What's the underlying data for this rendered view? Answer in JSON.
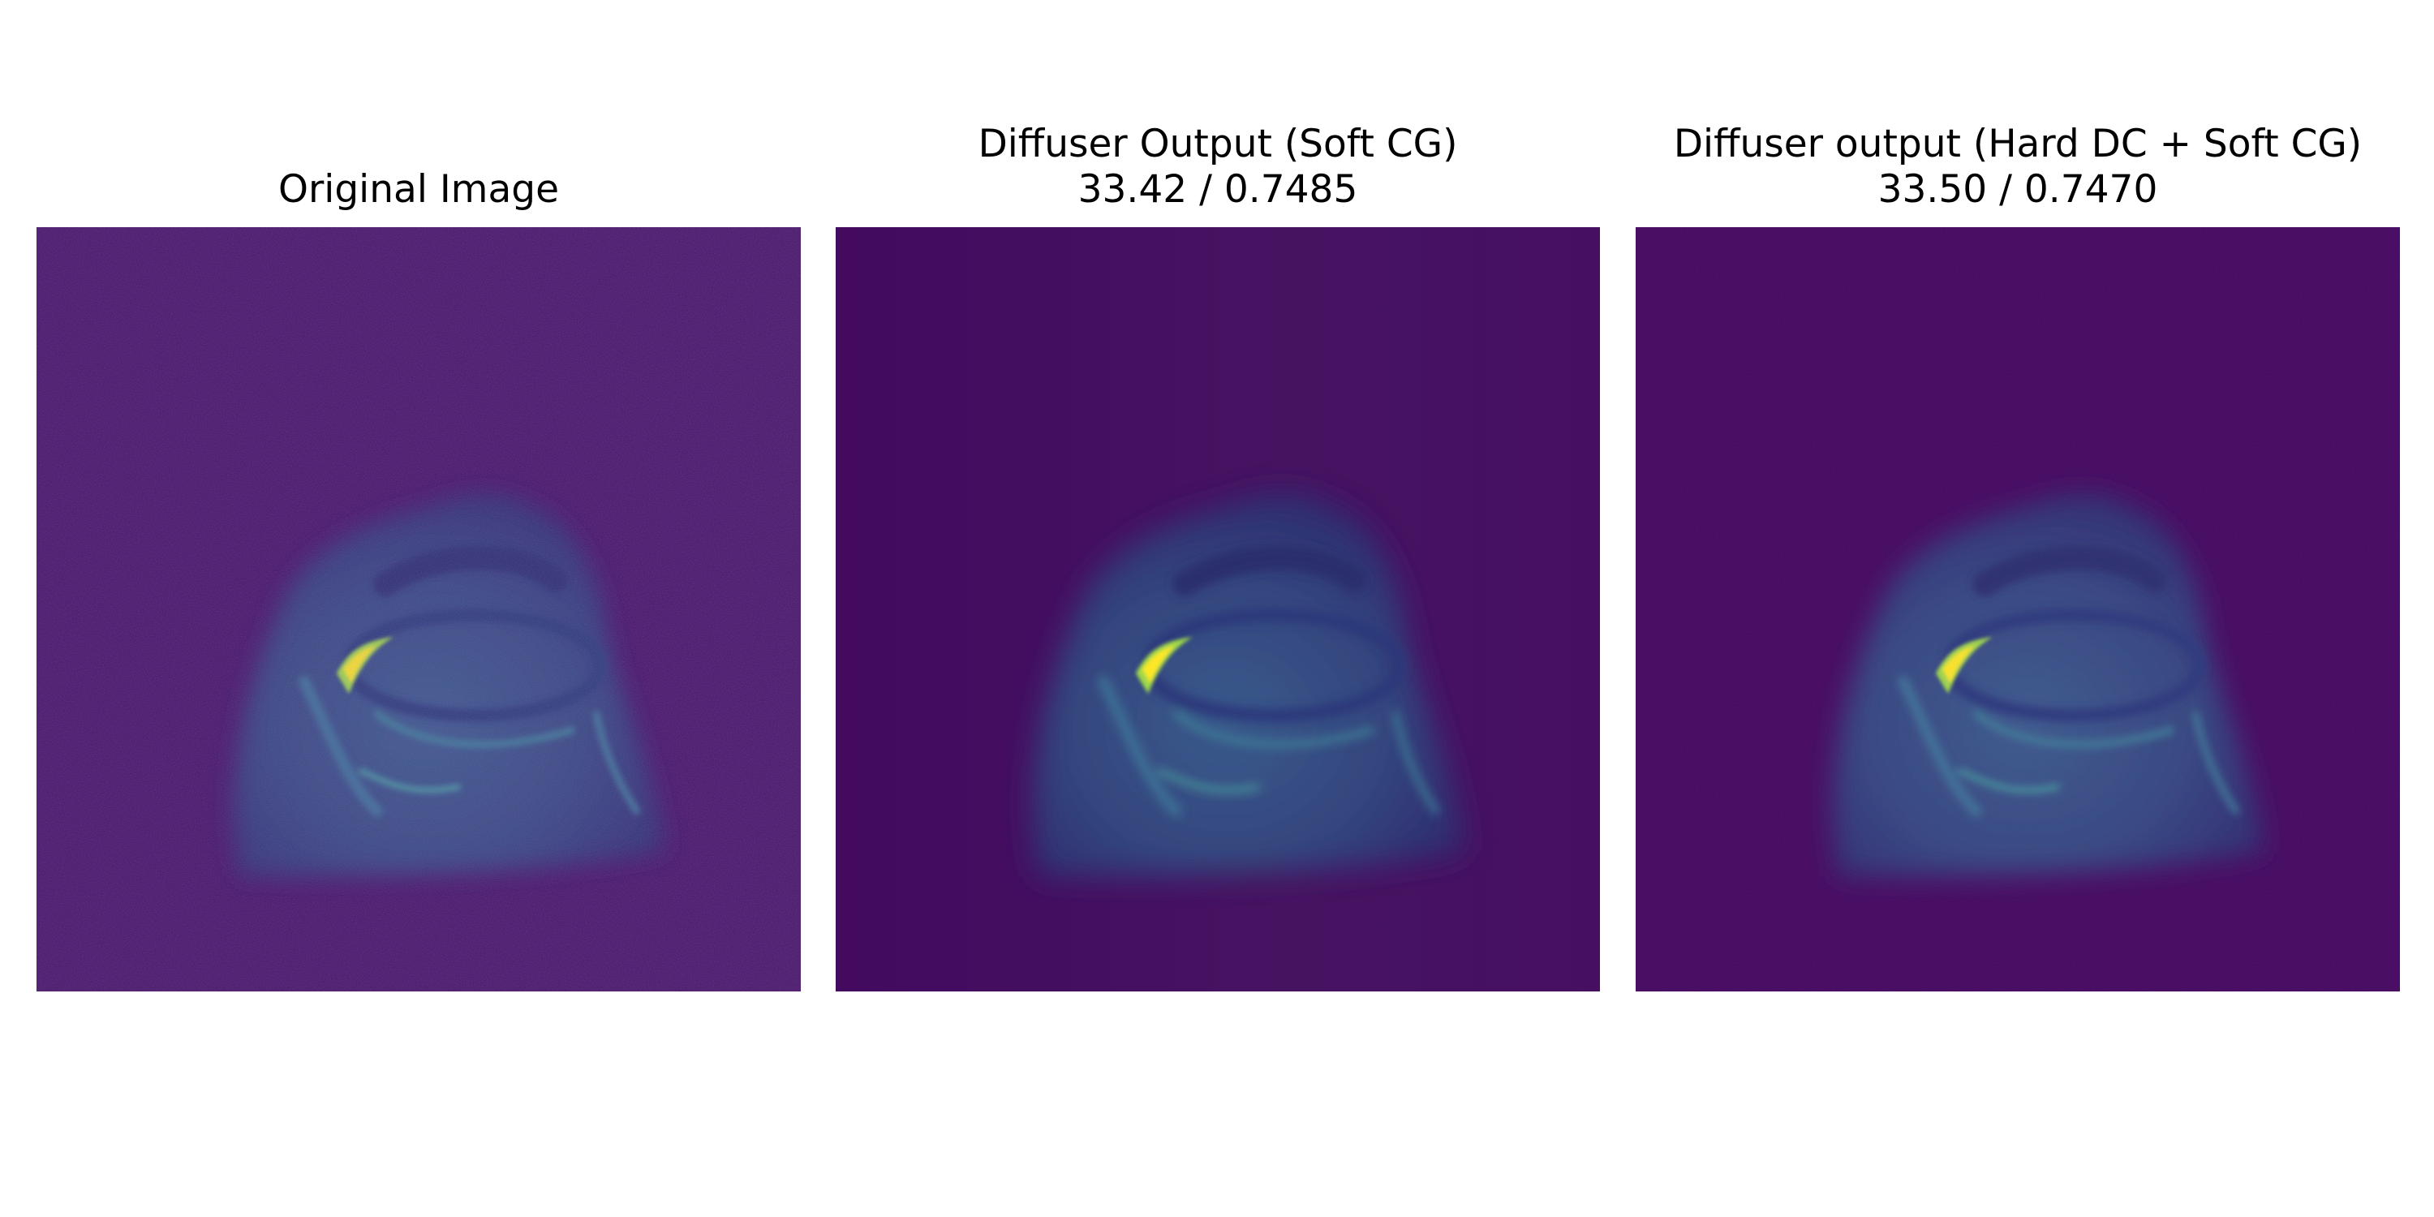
{
  "panels": [
    {
      "title_lines": [
        "",
        "Original Image"
      ],
      "variant": "noisy"
    },
    {
      "title_lines": [
        "Diffuser Output (Soft CG)",
        "33.42 / 0.7485"
      ],
      "variant": "smooth"
    },
    {
      "title_lines": [
        "Diffuser output (Hard DC + Soft CG)",
        "33.50 / 0.7470"
      ],
      "variant": "smooth"
    }
  ],
  "colormap": "viridis",
  "colors": {
    "background": "#45085e",
    "tissue": "#3b5a8c",
    "highlight": "#fde725"
  }
}
